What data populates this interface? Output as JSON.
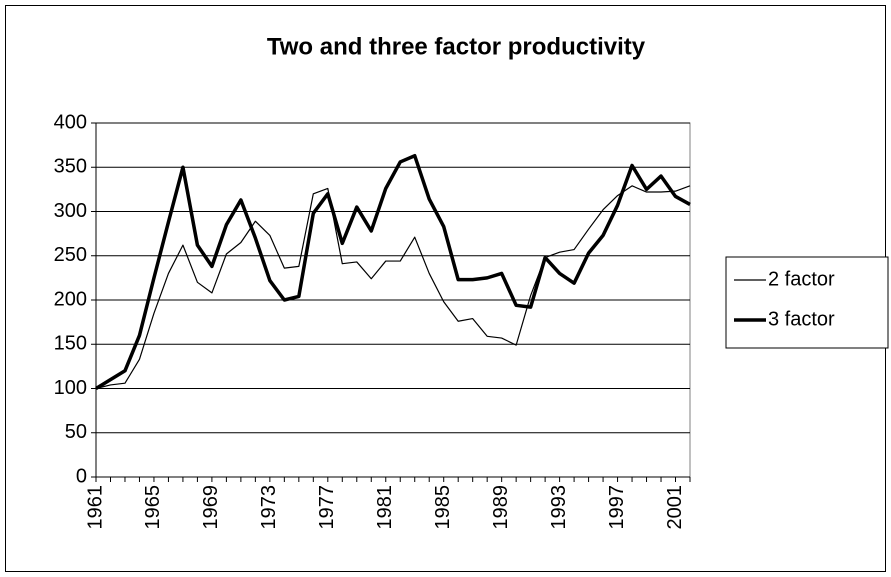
{
  "chart_data": {
    "type": "line",
    "title": "Two and three factor productivity",
    "categories": [
      "1961",
      null,
      null,
      null,
      "1965",
      null,
      null,
      null,
      "1969",
      null,
      null,
      null,
      "1973",
      null,
      null,
      null,
      "1977",
      null,
      null,
      null,
      "1981",
      null,
      null,
      null,
      "1985",
      null,
      null,
      null,
      "1989",
      null,
      null,
      null,
      "1993",
      null,
      null,
      null,
      "1997",
      null,
      null,
      null,
      "2001",
      null
    ],
    "series": [
      {
        "name": "2 factor",
        "color": "#000000",
        "values": [
          100,
          104,
          106,
          133,
          185,
          230,
          262,
          220,
          208,
          252,
          265,
          289,
          273,
          236,
          238,
          320,
          326,
          241,
          243,
          224,
          244,
          244,
          271,
          230,
          198,
          176,
          179,
          159,
          157,
          149,
          205,
          248,
          254,
          257,
          280,
          302,
          318,
          329,
          322,
          322,
          323,
          329
        ]
      },
      {
        "name": "3 factor",
        "color": "#000000",
        "values": [
          100,
          110,
          120,
          160,
          225,
          288,
          350,
          262,
          238,
          285,
          313,
          270,
          222,
          200,
          204,
          298,
          320,
          264,
          305,
          278,
          326,
          356,
          363,
          314,
          283,
          223,
          223,
          225,
          230,
          194,
          192,
          248,
          230,
          219,
          253,
          273,
          307,
          352,
          325,
          340,
          317,
          308
        ]
      }
    ],
    "ylim": [
      0,
      400
    ],
    "yticks": [
      0,
      50,
      100,
      150,
      200,
      250,
      300,
      350,
      400
    ],
    "grid": true,
    "legend": "right"
  }
}
